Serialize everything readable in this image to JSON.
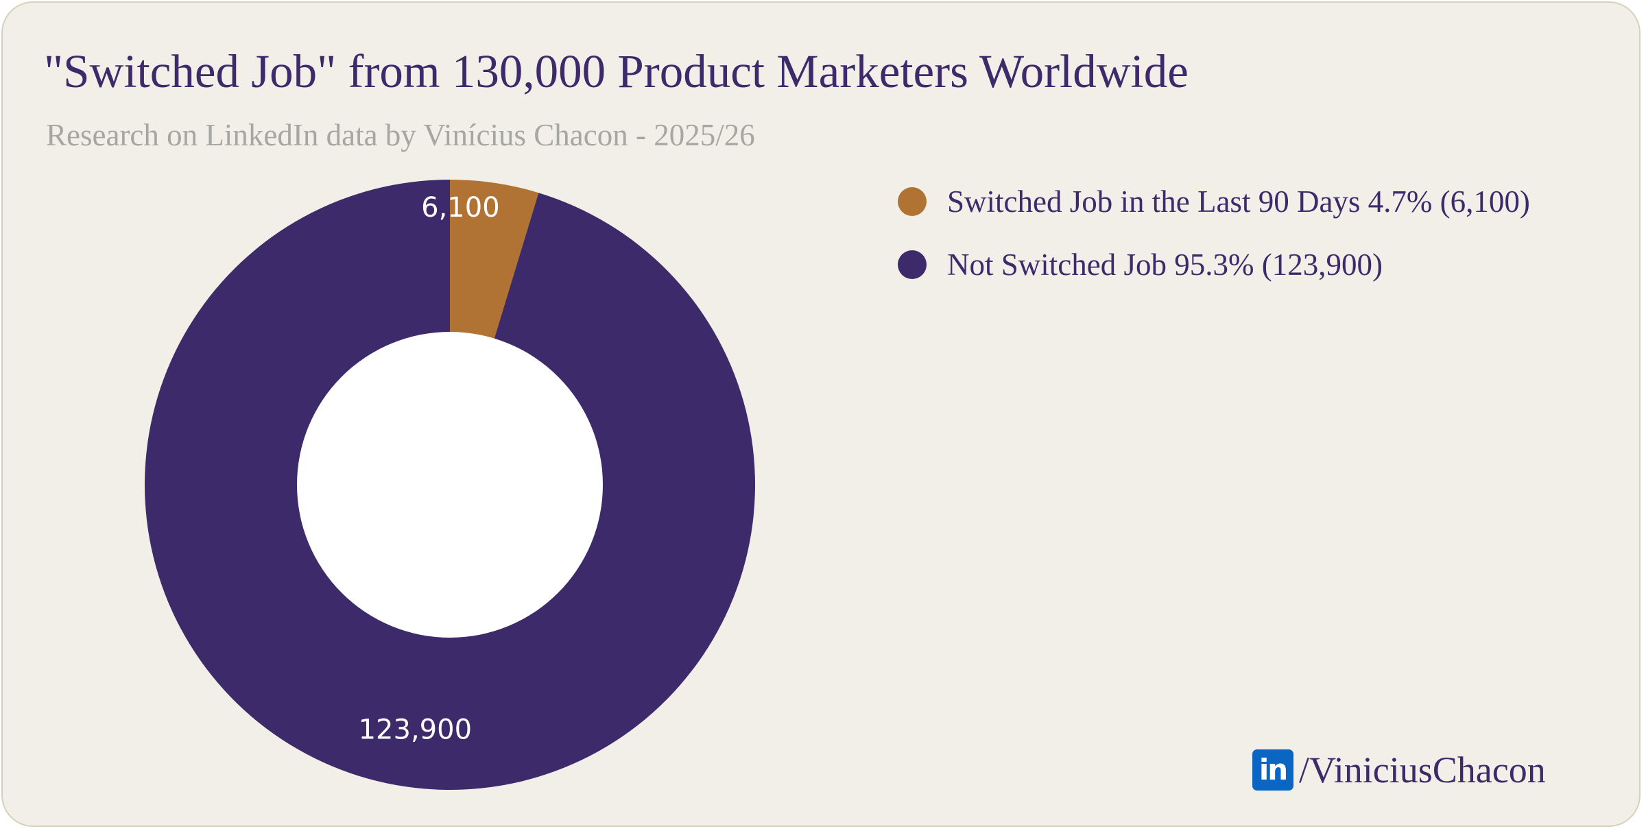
{
  "title": "\"Switched Job\" from 130,000 Product Marketers Worldwide",
  "subtitle": "Research on LinkedIn data by Vinícius Chacon - 2025/26",
  "legend": [
    {
      "label": "Switched Job in the Last 90 Days 4.7% (6,100)",
      "color": "#b07333"
    },
    {
      "label": "Not Switched Job 95.3% (123,900)",
      "color": "#3d2a6b"
    }
  ],
  "branding": {
    "icon": "linkedin-icon",
    "icon_text": "in",
    "handle": "/ViniciusChacon"
  },
  "chart_data": {
    "type": "pie",
    "donut": true,
    "title": "\"Switched Job\" from 130,000 Product Marketers Worldwide",
    "subtitle": "Research on LinkedIn data by Vinícius Chacon - 2025/26",
    "legend_position": "right",
    "categories": [
      "Switched Job in the Last 90 Days",
      "Not Switched Job"
    ],
    "values": [
      6100,
      123900
    ],
    "percentages": [
      4.7,
      95.3
    ],
    "data_labels": [
      "6,100",
      "123,900"
    ],
    "colors": [
      "#b07333",
      "#3d2a6b"
    ],
    "label_color": "#ffffff",
    "hole_color": "#ffffff"
  }
}
